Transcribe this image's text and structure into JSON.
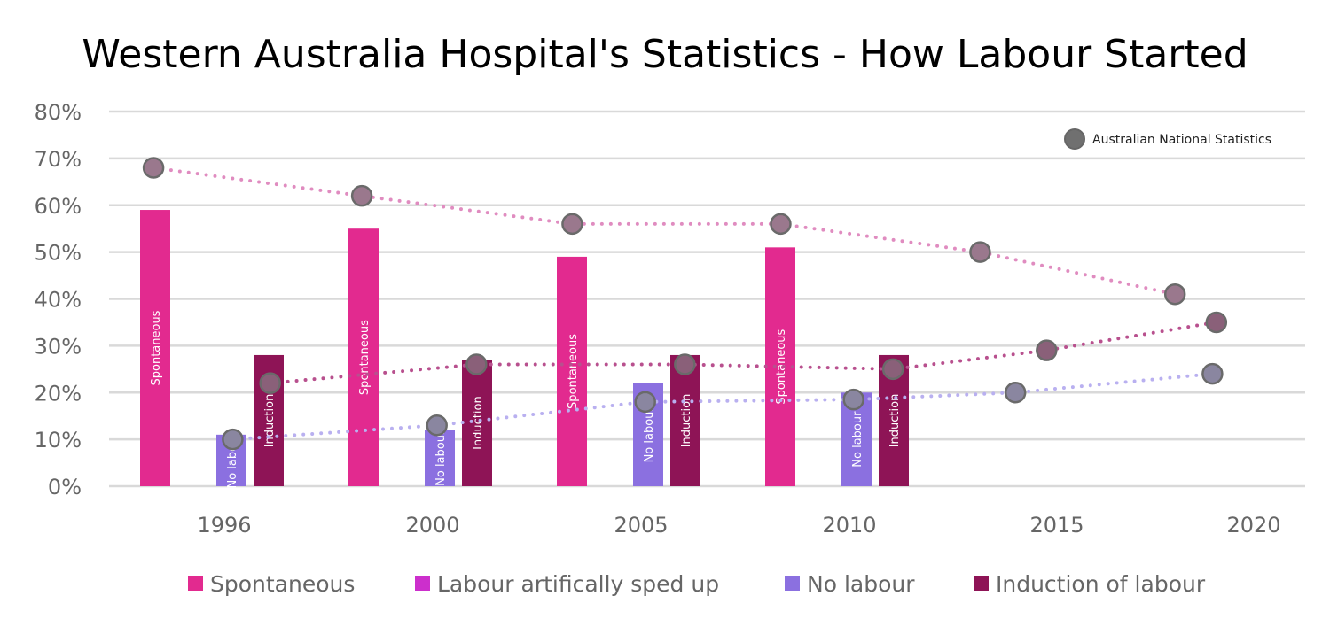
{
  "chart_data": {
    "type": "bar",
    "title": "Western Australia Hospital's Statistics - How Labour Started",
    "categories": [
      "1996",
      "2000",
      "2005",
      "2010",
      "2015",
      "2020"
    ],
    "ylim": [
      0,
      80
    ],
    "yticks": [
      "0%",
      "10%",
      "20%",
      "30%",
      "40%",
      "50%",
      "60%",
      "70%",
      "80%"
    ],
    "grid": true,
    "legend_position": "bottom",
    "series": [
      {
        "name": "Spontaneous",
        "color": "#e22a8f",
        "values": [
          59,
          55,
          49,
          51,
          null,
          null
        ],
        "bar_label": "Spontaneous"
      },
      {
        "name": "Labour artifically sped up",
        "color": "#cc2fcc",
        "values": [
          null,
          null,
          null,
          null,
          null,
          null
        ],
        "bar_label": ""
      },
      {
        "name": "No labour",
        "color": "#8b70e0",
        "values": [
          11,
          12,
          22,
          20,
          null,
          null
        ],
        "bar_label": "No labour"
      },
      {
        "name": "Induction of labour",
        "color": "#8e1456",
        "values": [
          28,
          27,
          28,
          28,
          null,
          null
        ],
        "bar_label": "Induction"
      }
    ],
    "national_statistics": {
      "name": "Australian National Statistics",
      "marker_color": "#707070",
      "lines": [
        {
          "color": "#e08cc0",
          "points": [
            [
              -0.34,
              68
            ],
            [
              0.66,
              62
            ],
            [
              1.67,
              56
            ],
            [
              2.67,
              56
            ],
            [
              3.63,
              50
            ],
            [
              4.6,
              41
            ]
          ]
        },
        {
          "color": "#b8508e",
          "points": [
            [
              0.22,
              22
            ],
            [
              1.21,
              26
            ],
            [
              2.21,
              26
            ],
            [
              3.21,
              25
            ],
            [
              3.95,
              29
            ],
            [
              4.81,
              35
            ]
          ]
        },
        {
          "color": "#b9b0f0",
          "points": [
            [
              0.04,
              10
            ],
            [
              1.02,
              13
            ],
            [
              2.02,
              18
            ],
            [
              3.02,
              18.5
            ],
            [
              3.8,
              20
            ],
            [
              4.79,
              24
            ]
          ]
        }
      ]
    }
  }
}
